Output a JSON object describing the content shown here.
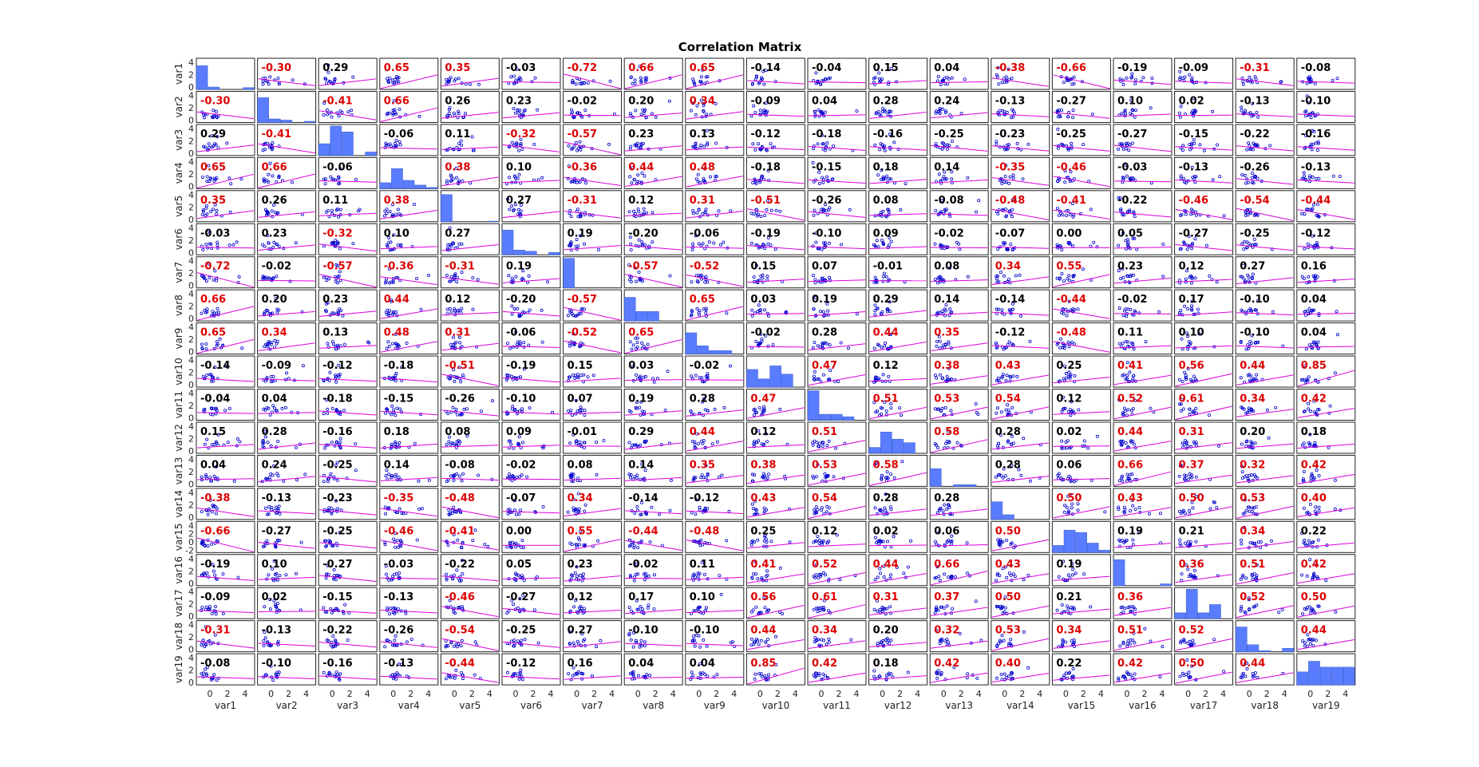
{
  "chart_data": {
    "type": "scatter-matrix",
    "title": "Correlation Matrix",
    "variables": [
      "var1",
      "var2",
      "var3",
      "var4",
      "var5",
      "var6",
      "var7",
      "var8",
      "var9",
      "var10",
      "var11",
      "var12",
      "var13",
      "var14",
      "var15",
      "var16",
      "var17",
      "var18",
      "var19"
    ],
    "x_ticks": [
      "0",
      "2",
      "4"
    ],
    "y_ticks": [
      "4",
      "2",
      "0"
    ],
    "y_ticks_var15": [
      "4",
      "2",
      "0",
      "-2"
    ],
    "significant_color": "#dd0000",
    "normal_color": "#000000",
    "point_color": "#0000cc",
    "fit_line_color": "#dd00dd",
    "hist_color": "#5a7dff",
    "correlations": [
      [
        null,
        -0.3,
        0.29,
        0.65,
        0.35,
        -0.03,
        -0.72,
        0.66,
        0.65,
        -0.14,
        -0.04,
        0.15,
        0.04,
        -0.38,
        -0.66,
        -0.19,
        -0.09,
        -0.31,
        -0.08
      ],
      [
        -0.3,
        null,
        -0.41,
        0.66,
        0.26,
        0.23,
        -0.02,
        0.2,
        0.34,
        -0.09,
        0.04,
        0.28,
        0.24,
        -0.13,
        -0.27,
        0.1,
        0.02,
        -0.13,
        -0.1
      ],
      [
        0.29,
        -0.41,
        null,
        -0.06,
        0.11,
        -0.32,
        -0.57,
        0.23,
        0.13,
        -0.12,
        -0.18,
        -0.16,
        -0.25,
        -0.23,
        -0.25,
        -0.27,
        -0.15,
        -0.22,
        -0.16
      ],
      [
        0.65,
        0.66,
        -0.06,
        null,
        0.38,
        0.1,
        -0.36,
        0.44,
        0.48,
        -0.18,
        -0.15,
        0.18,
        0.14,
        -0.35,
        -0.46,
        -0.03,
        -0.13,
        -0.26,
        -0.13
      ],
      [
        0.35,
        0.26,
        0.11,
        0.38,
        null,
        0.27,
        -0.31,
        0.12,
        0.31,
        -0.51,
        -0.26,
        0.08,
        -0.08,
        -0.48,
        -0.41,
        -0.22,
        -0.46,
        -0.54,
        -0.44
      ],
      [
        -0.03,
        0.23,
        -0.32,
        0.1,
        0.27,
        null,
        0.19,
        -0.2,
        -0.06,
        -0.19,
        -0.1,
        0.09,
        -0.02,
        -0.07,
        0.0,
        0.05,
        -0.27,
        -0.25,
        -0.12
      ],
      [
        -0.72,
        -0.02,
        -0.57,
        -0.36,
        -0.31,
        0.19,
        null,
        -0.57,
        -0.52,
        0.15,
        0.07,
        -0.01,
        0.08,
        0.34,
        0.55,
        0.23,
        0.12,
        0.27,
        0.16
      ],
      [
        0.66,
        0.2,
        0.23,
        0.44,
        0.12,
        -0.2,
        -0.57,
        null,
        0.65,
        0.03,
        0.19,
        0.29,
        0.14,
        -0.14,
        -0.44,
        -0.02,
        0.17,
        -0.1,
        0.04
      ],
      [
        0.65,
        0.34,
        0.13,
        0.48,
        0.31,
        -0.06,
        -0.52,
        0.65,
        null,
        -0.02,
        0.28,
        0.44,
        0.35,
        -0.12,
        -0.48,
        0.11,
        0.1,
        -0.1,
        0.04
      ],
      [
        -0.14,
        -0.09,
        -0.12,
        -0.18,
        -0.51,
        -0.19,
        0.15,
        0.03,
        -0.02,
        null,
        0.47,
        0.12,
        0.38,
        0.43,
        0.25,
        0.41,
        0.56,
        0.44,
        0.85
      ],
      [
        -0.04,
        0.04,
        -0.18,
        -0.15,
        -0.26,
        -0.1,
        0.07,
        0.19,
        0.28,
        0.47,
        null,
        0.51,
        0.53,
        0.54,
        0.12,
        0.52,
        0.61,
        0.34,
        0.42
      ],
      [
        0.15,
        0.28,
        -0.16,
        0.18,
        0.08,
        0.09,
        -0.01,
        0.29,
        0.44,
        0.12,
        0.51,
        null,
        0.58,
        0.28,
        0.02,
        0.44,
        0.31,
        0.2,
        0.18
      ],
      [
        0.04,
        0.24,
        -0.25,
        0.14,
        -0.08,
        -0.02,
        0.08,
        0.14,
        0.35,
        0.38,
        0.53,
        0.58,
        null,
        0.28,
        0.06,
        0.66,
        0.37,
        0.32,
        0.42
      ],
      [
        -0.38,
        -0.13,
        -0.23,
        -0.35,
        -0.48,
        -0.07,
        0.34,
        -0.14,
        -0.12,
        0.43,
        0.54,
        0.28,
        0.28,
        null,
        0.5,
        0.43,
        0.5,
        0.53,
        0.4
      ],
      [
        -0.66,
        -0.27,
        -0.25,
        -0.46,
        -0.41,
        0.0,
        0.55,
        -0.44,
        -0.48,
        0.25,
        0.12,
        0.02,
        0.06,
        0.5,
        null,
        0.19,
        0.21,
        0.34,
        0.22
      ],
      [
        -0.19,
        0.1,
        -0.27,
        -0.03,
        -0.22,
        0.05,
        0.23,
        -0.02,
        0.11,
        0.41,
        0.52,
        0.44,
        0.66,
        0.43,
        0.19,
        null,
        0.36,
        0.51,
        0.42
      ],
      [
        -0.09,
        0.02,
        -0.15,
        -0.13,
        -0.46,
        -0.27,
        0.12,
        0.17,
        0.1,
        0.56,
        0.61,
        0.31,
        0.37,
        0.5,
        0.21,
        0.36,
        null,
        0.52,
        0.5
      ],
      [
        -0.31,
        -0.13,
        -0.22,
        -0.26,
        -0.54,
        -0.25,
        0.27,
        -0.1,
        -0.1,
        0.44,
        0.34,
        0.2,
        0.32,
        0.53,
        0.34,
        0.51,
        0.52,
        null,
        0.44
      ],
      [
        -0.08,
        -0.1,
        -0.16,
        -0.13,
        -0.44,
        -0.12,
        0.16,
        0.04,
        0.04,
        0.85,
        0.42,
        0.18,
        0.42,
        0.4,
        0.22,
        0.42,
        0.5,
        0.44,
        null
      ]
    ],
    "histograms": [
      [
        4.0,
        0.4,
        0.0,
        0.0,
        0.3
      ],
      [
        4.2,
        0.6,
        0.4,
        0.0,
        0.2
      ],
      [
        2.0,
        5.0,
        4.0,
        0.0,
        0.6
      ],
      [
        1.0,
        3.4,
        1.4,
        0.6,
        0.2
      ],
      [
        4.6,
        0.0,
        0.0,
        0.0,
        0.1
      ],
      [
        4.2,
        0.8,
        0.6,
        0.0,
        0.4
      ],
      [
        5.4,
        0.0,
        0.0,
        0.0,
        0.0
      ],
      [
        4.0,
        1.6,
        1.6,
        0.0,
        0.0
      ],
      [
        3.6,
        1.4,
        0.6,
        0.6,
        0.0
      ],
      [
        3.0,
        1.4,
        3.6,
        2.2,
        0.0
      ],
      [
        5.0,
        1.0,
        1.0,
        0.6,
        0.0
      ],
      [
        1.0,
        3.6,
        2.4,
        1.8,
        0.0
      ],
      [
        3.0,
        0.0,
        0.3,
        0.3,
        0.0
      ],
      [
        3.0,
        0.8,
        0.0,
        0.0,
        0.0
      ],
      [
        1.2,
        3.8,
        3.4,
        1.6,
        0.4
      ],
      [
        4.4,
        0.0,
        0.0,
        0.0,
        0.3
      ],
      [
        1.0,
        5.0,
        1.0,
        2.4,
        0.0
      ],
      [
        4.2,
        1.2,
        0.2,
        0.0,
        0.6
      ],
      [
        2.2,
        4.0,
        3.0,
        3.0,
        3.0
      ]
    ]
  }
}
